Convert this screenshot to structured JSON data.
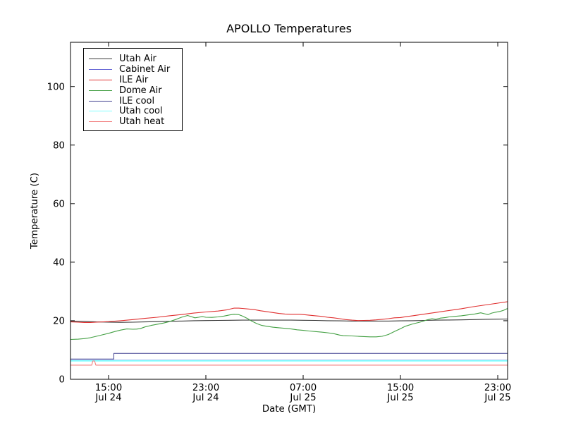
{
  "figure": {
    "title": "APOLLO Temperatures",
    "xlabel": "Date (GMT)",
    "ylabel": "Temperature (C)"
  },
  "axes": {
    "y_ticks": [
      {
        "v": 0,
        "label": "0"
      },
      {
        "v": 20,
        "label": "20"
      },
      {
        "v": 40,
        "label": "40"
      },
      {
        "v": 60,
        "label": "60"
      },
      {
        "v": 80,
        "label": "80"
      },
      {
        "v": 100,
        "label": "100"
      }
    ],
    "x_ticks": [
      {
        "t": 15,
        "time": "15:00",
        "date": "Jul 24"
      },
      {
        "t": 23,
        "time": "23:00",
        "date": "Jul 24"
      },
      {
        "t": 31,
        "time": "07:00",
        "date": "Jul 25"
      },
      {
        "t": 39,
        "time": "15:00",
        "date": "Jul 25"
      },
      {
        "t": 47,
        "time": "23:00",
        "date": "Jul 25"
      }
    ]
  },
  "chart_data": {
    "type": "line",
    "title": "APOLLO Temperatures",
    "xlabel": "Date (GMT)",
    "ylabel": "Temperature (C)",
    "x_unit": "hours since Jul 24 00:00 GMT (plot spans ~12:00 Jul 24 to ~24:00 Jul 25)",
    "xlim": [
      11.87,
      47.81
    ],
    "ylim": [
      0,
      115.1
    ],
    "grid": false,
    "legend_position": "upper-left",
    "tick_direction": "in",
    "series": [
      {
        "name": "Utah Air",
        "color": "#3a3a3a",
        "width": 1.1,
        "points": [
          [
            11.87,
            19.9
          ],
          [
            13,
            19.8
          ],
          [
            14,
            19.6
          ],
          [
            15,
            19.5
          ],
          [
            16,
            19.45
          ],
          [
            17,
            19.5
          ],
          [
            18,
            19.6
          ],
          [
            19,
            19.7
          ],
          [
            20,
            19.8
          ],
          [
            21,
            19.9
          ],
          [
            22,
            20.0
          ],
          [
            23,
            20.05
          ],
          [
            24,
            20.1
          ],
          [
            25,
            20.15
          ],
          [
            26,
            20.2
          ],
          [
            27,
            20.2
          ],
          [
            28,
            20.2
          ],
          [
            29,
            20.2
          ],
          [
            30,
            20.2
          ],
          [
            31,
            20.15
          ],
          [
            32,
            20.1
          ],
          [
            33,
            20.0
          ],
          [
            34,
            19.95
          ],
          [
            35,
            19.9
          ],
          [
            36,
            19.9
          ],
          [
            37,
            19.9
          ],
          [
            38,
            19.9
          ],
          [
            39,
            19.95
          ],
          [
            40,
            20.0
          ],
          [
            41,
            20.1
          ],
          [
            42,
            20.2
          ],
          [
            43,
            20.25
          ],
          [
            44,
            20.3
          ],
          [
            45,
            20.4
          ],
          [
            46,
            20.5
          ],
          [
            47,
            20.55
          ],
          [
            47.81,
            20.6
          ]
        ]
      },
      {
        "name": "Cabinet Air",
        "color": "#5f5fd3",
        "width": 1.0,
        "points": [
          [
            11.87,
            6.5
          ],
          [
            47.81,
            6.5
          ]
        ]
      },
      {
        "name": "ILE Air",
        "color": "#e03030",
        "width": 1.1,
        "points": [
          [
            11.87,
            19.6
          ],
          [
            12.5,
            19.5
          ],
          [
            13,
            19.4
          ],
          [
            13.5,
            19.4
          ],
          [
            14,
            19.5
          ],
          [
            15,
            19.7
          ],
          [
            16,
            20.0
          ],
          [
            17,
            20.4
          ],
          [
            18,
            20.8
          ],
          [
            19,
            21.2
          ],
          [
            20,
            21.7
          ],
          [
            21,
            22.1
          ],
          [
            22,
            22.6
          ],
          [
            23,
            23.0
          ],
          [
            24,
            23.3
          ],
          [
            24.7,
            23.7
          ],
          [
            25.3,
            24.3
          ],
          [
            25.7,
            24.3
          ],
          [
            26,
            24.2
          ],
          [
            26.5,
            24.0
          ],
          [
            27,
            23.8
          ],
          [
            27.5,
            23.4
          ],
          [
            28,
            23.1
          ],
          [
            28.5,
            22.8
          ],
          [
            29,
            22.5
          ],
          [
            29.5,
            22.3
          ],
          [
            30,
            22.2
          ],
          [
            30.7,
            22.2
          ],
          [
            31,
            22.1
          ],
          [
            31.5,
            21.9
          ],
          [
            32,
            21.7
          ],
          [
            32.5,
            21.5
          ],
          [
            33,
            21.2
          ],
          [
            33.5,
            21.0
          ],
          [
            34,
            20.7
          ],
          [
            34.5,
            20.4
          ],
          [
            35,
            20.2
          ],
          [
            35.5,
            20.05
          ],
          [
            36,
            20.1
          ],
          [
            36.5,
            20.15
          ],
          [
            37,
            20.3
          ],
          [
            37.5,
            20.5
          ],
          [
            38,
            20.7
          ],
          [
            38.5,
            21.0
          ],
          [
            39,
            21.1
          ],
          [
            39.5,
            21.4
          ],
          [
            40,
            21.7
          ],
          [
            41,
            22.3
          ],
          [
            42,
            22.9
          ],
          [
            43,
            23.5
          ],
          [
            44,
            24.1
          ],
          [
            45,
            24.8
          ],
          [
            46,
            25.4
          ],
          [
            47,
            26.0
          ],
          [
            47.81,
            26.5
          ]
        ]
      },
      {
        "name": "Dome Air",
        "color": "#44a044",
        "width": 1.1,
        "points": [
          [
            11.87,
            13.6
          ],
          [
            12.5,
            13.7
          ],
          [
            13,
            13.9
          ],
          [
            13.5,
            14.2
          ],
          [
            14,
            14.7
          ],
          [
            14.5,
            15.2
          ],
          [
            15,
            15.7
          ],
          [
            15.5,
            16.3
          ],
          [
            16,
            16.8
          ],
          [
            16.5,
            17.2
          ],
          [
            17,
            17.1
          ],
          [
            17.3,
            17.15
          ],
          [
            17.6,
            17.3
          ],
          [
            18,
            17.9
          ],
          [
            18.5,
            18.4
          ],
          [
            19,
            18.8
          ],
          [
            19.5,
            19.2
          ],
          [
            20,
            19.7
          ],
          [
            20.5,
            20.4
          ],
          [
            21,
            21.2
          ],
          [
            21.5,
            21.8
          ],
          [
            21.8,
            21.4
          ],
          [
            22.1,
            21.0
          ],
          [
            22.4,
            21.2
          ],
          [
            22.7,
            21.4
          ],
          [
            23,
            21.2
          ],
          [
            23.5,
            21.15
          ],
          [
            24,
            21.3
          ],
          [
            24.5,
            21.6
          ],
          [
            25,
            22.0
          ],
          [
            25.3,
            22.2
          ],
          [
            25.7,
            22.1
          ],
          [
            26,
            21.6
          ],
          [
            26.4,
            20.8
          ],
          [
            26.8,
            19.8
          ],
          [
            27.2,
            19.0
          ],
          [
            27.6,
            18.4
          ],
          [
            28,
            18.1
          ],
          [
            28.5,
            17.8
          ],
          [
            29,
            17.6
          ],
          [
            29.5,
            17.4
          ],
          [
            30,
            17.2
          ],
          [
            30.5,
            16.9
          ],
          [
            31,
            16.7
          ],
          [
            31.5,
            16.5
          ],
          [
            32,
            16.3
          ],
          [
            32.5,
            16.1
          ],
          [
            33,
            15.9
          ],
          [
            33.5,
            15.6
          ],
          [
            34,
            15.1
          ],
          [
            34.3,
            14.9
          ],
          [
            35,
            14.8
          ],
          [
            35.5,
            14.7
          ],
          [
            36,
            14.6
          ],
          [
            36.5,
            14.5
          ],
          [
            37,
            14.5
          ],
          [
            37.5,
            14.7
          ],
          [
            38,
            15.3
          ],
          [
            38.5,
            16.3
          ],
          [
            39,
            17.3
          ],
          [
            39.4,
            18.1
          ],
          [
            40,
            18.9
          ],
          [
            40.6,
            19.5
          ],
          [
            41.2,
            20.3
          ],
          [
            41.6,
            20.7
          ],
          [
            41.9,
            20.5
          ],
          [
            42.3,
            20.9
          ],
          [
            42.7,
            21.1
          ],
          [
            43,
            21.3
          ],
          [
            43.5,
            21.5
          ],
          [
            44,
            21.7
          ],
          [
            44.6,
            22.0
          ],
          [
            45.1,
            22.3
          ],
          [
            45.6,
            22.7
          ],
          [
            45.9,
            22.4
          ],
          [
            46.2,
            22.1
          ],
          [
            46.5,
            22.6
          ],
          [
            46.8,
            22.9
          ],
          [
            47.2,
            23.2
          ],
          [
            47.5,
            23.6
          ],
          [
            47.81,
            24.2
          ]
        ]
      },
      {
        "name": "ILE cool",
        "color": "#3f3f8f",
        "width": 1.0,
        "points": [
          [
            11.87,
            6.9
          ],
          [
            15.43,
            6.9
          ],
          [
            15.43,
            8.85
          ],
          [
            47.81,
            8.85
          ]
        ]
      },
      {
        "name": "Utah cool",
        "color": "#7fffff",
        "width": 1.8,
        "points": [
          [
            11.87,
            6.3
          ],
          [
            47.81,
            6.3
          ]
        ]
      },
      {
        "name": "Utah heat",
        "color": "#f28080",
        "width": 1.1,
        "points": [
          [
            11.87,
            4.85
          ],
          [
            13.62,
            4.85
          ],
          [
            13.7,
            6.25
          ],
          [
            13.85,
            6.25
          ],
          [
            13.95,
            4.85
          ],
          [
            47.81,
            4.85
          ]
        ]
      }
    ]
  }
}
